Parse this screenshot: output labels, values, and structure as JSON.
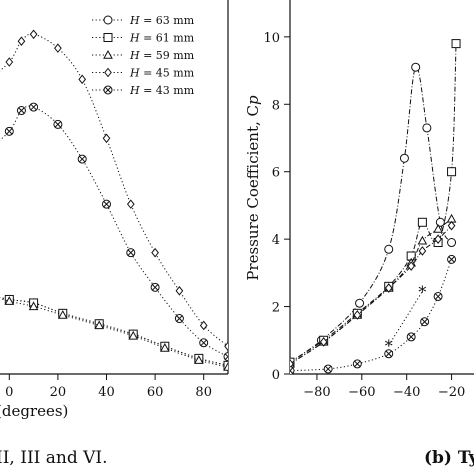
{
  "chart_data": [
    {
      "type": "line",
      "xlabel": "(degrees)",
      "xlim": [
        -10,
        90
      ],
      "ylim": [
        0,
        10.5
      ],
      "x_ticks": [
        0,
        20,
        40,
        60,
        80
      ],
      "legend_position": "top-right",
      "series": [
        {
          "name": "H = 63 mm",
          "marker": "circle",
          "style": "dotted",
          "x": [
            -10,
            0,
            10,
            22,
            37,
            51,
            64,
            78,
            90
          ],
          "y": [
            2.3,
            2.15,
            2.05,
            1.75,
            1.45,
            1.15,
            0.8,
            0.45,
            0.25
          ]
        },
        {
          "name": "H = 61 mm",
          "marker": "square",
          "style": "dotted",
          "x": [
            -10,
            0,
            10,
            22,
            37,
            51,
            64,
            78,
            90
          ],
          "y": [
            2.3,
            2.15,
            2.05,
            1.75,
            1.45,
            1.15,
            0.8,
            0.45,
            0.25
          ]
        },
        {
          "name": "H = 59 mm",
          "marker": "triangle",
          "style": "dotted",
          "x": [
            -10,
            0,
            10,
            22,
            37,
            51,
            64,
            78,
            90
          ],
          "y": [
            2.3,
            2.1,
            1.95,
            1.7,
            1.4,
            1.1,
            0.75,
            0.4,
            0.2
          ]
        },
        {
          "name": "H = 45 mm",
          "marker": "diamond",
          "style": "dotted",
          "x": [
            -10,
            0,
            5,
            10,
            20,
            30,
            40,
            50,
            60,
            70,
            80,
            90
          ],
          "y": [
            8.4,
            9.0,
            9.6,
            9.8,
            9.4,
            8.5,
            6.8,
            4.9,
            3.5,
            2.4,
            1.4,
            0.8
          ]
        },
        {
          "name": "H = 43 mm",
          "marker": "circle-cross",
          "style": "dotted",
          "x": [
            -10,
            0,
            5,
            10,
            20,
            30,
            40,
            50,
            60,
            70,
            80,
            90
          ],
          "y": [
            6.4,
            7.0,
            7.6,
            7.7,
            7.2,
            6.2,
            4.9,
            3.5,
            2.5,
            1.6,
            0.9,
            0.5
          ]
        }
      ]
    },
    {
      "type": "line",
      "caption": "(b) Ty",
      "ylabel": "Pressure Coefficient, C_p",
      "xlim": [
        -92,
        -10
      ],
      "ylim": [
        0,
        10.5
      ],
      "x_ticks": [
        -80,
        -60,
        -40,
        -20
      ],
      "y_ticks": [
        0,
        2,
        4,
        6,
        8,
        10
      ],
      "series": [
        {
          "marker": "circle",
          "style": "dashdot",
          "x": [
            -92,
            -78,
            -61,
            -48,
            -41,
            -36,
            -31,
            -25,
            -20
          ],
          "y": [
            0.35,
            1.0,
            2.1,
            3.7,
            6.4,
            9.1,
            7.3,
            4.5,
            3.9
          ]
        },
        {
          "marker": "square",
          "style": "dashdot",
          "x": [
            -92,
            -77,
            -62,
            -48,
            -38,
            -33,
            -26,
            -20,
            -18
          ],
          "y": [
            0.35,
            1.0,
            1.8,
            2.6,
            3.5,
            4.5,
            3.9,
            6.0,
            9.8
          ]
        },
        {
          "marker": "triangle",
          "style": "dashdot",
          "x": [
            -92,
            -77,
            -62,
            -48,
            -38,
            -33,
            -26,
            -20
          ],
          "y": [
            0.3,
            0.95,
            1.75,
            2.55,
            3.3,
            3.95,
            4.3,
            4.6
          ]
        },
        {
          "marker": "diamond",
          "style": "dashdot",
          "x": [
            -92,
            -77,
            -62,
            -48,
            -38,
            -33,
            -26,
            -20
          ],
          "y": [
            0.3,
            0.95,
            1.75,
            2.55,
            3.2,
            3.65,
            4.0,
            4.4
          ]
        },
        {
          "marker": "circle-cross",
          "style": "dotted",
          "x": [
            -92,
            -75,
            -62,
            -48,
            -38,
            -32,
            -26,
            -20
          ],
          "y": [
            0.1,
            0.15,
            0.3,
            0.6,
            1.1,
            1.55,
            2.3,
            3.4
          ]
        },
        {
          "marker": "asterisk",
          "style": "dotted",
          "x": [
            -48,
            -33
          ],
          "y": [
            0.85,
            2.45
          ]
        }
      ]
    }
  ],
  "left_caption": "II, III and VI.",
  "colors": {
    "ink": "#111111",
    "background": "#ffffff"
  }
}
